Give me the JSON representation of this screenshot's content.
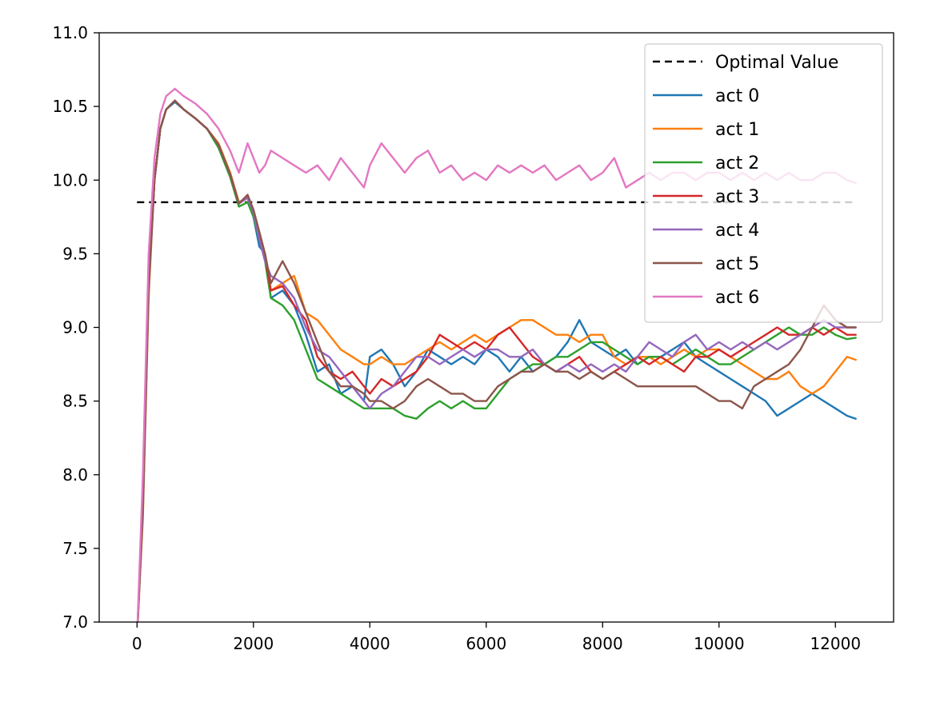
{
  "chart_data": {
    "type": "line",
    "title": "",
    "xlabel": "",
    "ylabel": "",
    "xlim": [
      -650,
      13000
    ],
    "ylim": [
      7.0,
      11.0
    ],
    "x_ticks": [
      0,
      2000,
      4000,
      6000,
      8000,
      10000,
      12000
    ],
    "x_tick_labels": [
      "0",
      "2000",
      "4000",
      "6000",
      "8000",
      "10000",
      "12000"
    ],
    "y_ticks": [
      7.0,
      7.5,
      8.0,
      8.5,
      9.0,
      9.5,
      10.0,
      10.5,
      11.0
    ],
    "y_tick_labels": [
      "7.0",
      "7.5",
      "8.0",
      "8.5",
      "9.0",
      "9.5",
      "10.0",
      "10.5",
      "11.0"
    ],
    "grid": false,
    "legend_position": "top-right",
    "reference_line": {
      "name": "Optimal Value",
      "y": 9.85,
      "x_range": [
        0,
        12350
      ],
      "color": "#000000",
      "style": "dashed"
    },
    "x": [
      0,
      100,
      200,
      300,
      400,
      500,
      650,
      800,
      1000,
      1200,
      1400,
      1600,
      1750,
      1900,
      2000,
      2100,
      2200,
      2300,
      2500,
      2700,
      2900,
      3100,
      3300,
      3500,
      3700,
      3900,
      4000,
      4200,
      4400,
      4600,
      4800,
      5000,
      5200,
      5400,
      5600,
      5800,
      6000,
      6200,
      6400,
      6600,
      6800,
      7000,
      7200,
      7400,
      7600,
      7800,
      8000,
      8200,
      8400,
      8600,
      8800,
      9000,
      9200,
      9400,
      9600,
      9800,
      10000,
      10200,
      10400,
      10600,
      10800,
      11000,
      11200,
      11400,
      11600,
      11800,
      12000,
      12200,
      12350
    ],
    "series": [
      {
        "name": "act 0",
        "color": "#1f77b4",
        "values": [
          6.9,
          7.8,
          9.3,
          10.0,
          10.35,
          10.48,
          10.53,
          10.48,
          10.42,
          10.35,
          10.25,
          10.05,
          9.85,
          9.88,
          9.75,
          9.55,
          9.5,
          9.2,
          9.25,
          9.15,
          8.95,
          8.7,
          8.75,
          8.55,
          8.6,
          8.5,
          8.8,
          8.85,
          8.75,
          8.6,
          8.7,
          8.85,
          8.8,
          8.75,
          8.8,
          8.75,
          8.85,
          8.8,
          8.7,
          8.8,
          8.7,
          8.75,
          8.8,
          8.9,
          9.05,
          8.9,
          8.85,
          8.8,
          8.85,
          8.75,
          8.8,
          8.8,
          8.85,
          8.9,
          8.8,
          8.75,
          8.7,
          8.65,
          8.6,
          8.55,
          8.5,
          8.4,
          8.45,
          8.5,
          8.55,
          8.5,
          8.45,
          8.4,
          8.38
        ]
      },
      {
        "name": "act 1",
        "color": "#ff7f0e",
        "values": [
          6.9,
          7.7,
          9.2,
          10.0,
          10.35,
          10.48,
          10.54,
          10.48,
          10.42,
          10.35,
          10.25,
          10.05,
          9.85,
          9.88,
          9.78,
          9.6,
          9.5,
          9.25,
          9.3,
          9.35,
          9.1,
          9.05,
          8.95,
          8.85,
          8.8,
          8.75,
          8.75,
          8.8,
          8.75,
          8.75,
          8.8,
          8.85,
          8.9,
          8.85,
          8.9,
          8.95,
          8.9,
          8.95,
          9.0,
          9.05,
          9.05,
          9.0,
          8.95,
          8.95,
          8.9,
          8.95,
          8.95,
          8.8,
          8.75,
          8.8,
          8.8,
          8.75,
          8.8,
          8.85,
          8.8,
          8.85,
          8.85,
          8.8,
          8.75,
          8.7,
          8.65,
          8.65,
          8.7,
          8.6,
          8.55,
          8.6,
          8.7,
          8.8,
          8.78
        ]
      },
      {
        "name": "act 2",
        "color": "#2ca02c",
        "values": [
          6.9,
          7.75,
          9.25,
          10.0,
          10.35,
          10.48,
          10.54,
          10.48,
          10.42,
          10.35,
          10.22,
          10.02,
          9.82,
          9.85,
          9.75,
          9.6,
          9.45,
          9.2,
          9.15,
          9.05,
          8.85,
          8.65,
          8.6,
          8.55,
          8.5,
          8.45,
          8.45,
          8.45,
          8.45,
          8.4,
          8.38,
          8.45,
          8.5,
          8.45,
          8.5,
          8.45,
          8.45,
          8.55,
          8.65,
          8.7,
          8.75,
          8.75,
          8.8,
          8.8,
          8.85,
          8.9,
          8.9,
          8.85,
          8.8,
          8.75,
          8.8,
          8.8,
          8.75,
          8.8,
          8.85,
          8.8,
          8.75,
          8.75,
          8.8,
          8.85,
          8.9,
          8.95,
          9.0,
          8.95,
          8.95,
          9.0,
          8.95,
          8.92,
          8.93
        ]
      },
      {
        "name": "act 3",
        "color": "#d62728",
        "values": [
          6.9,
          7.8,
          9.3,
          10.0,
          10.35,
          10.48,
          10.54,
          10.48,
          10.42,
          10.35,
          10.24,
          10.04,
          9.84,
          9.9,
          9.78,
          9.62,
          9.48,
          9.25,
          9.28,
          9.15,
          9.05,
          8.8,
          8.7,
          8.65,
          8.7,
          8.6,
          8.55,
          8.65,
          8.6,
          8.65,
          8.7,
          8.8,
          8.95,
          8.9,
          8.85,
          8.9,
          8.85,
          8.95,
          9.0,
          8.9,
          8.8,
          8.75,
          8.7,
          8.75,
          8.8,
          8.7,
          8.65,
          8.7,
          8.75,
          8.8,
          8.75,
          8.8,
          8.75,
          8.7,
          8.8,
          8.8,
          8.85,
          8.8,
          8.85,
          8.9,
          8.95,
          9.0,
          8.95,
          8.95,
          9.0,
          8.95,
          9.0,
          8.95,
          8.95
        ]
      },
      {
        "name": "act 4",
        "color": "#9467bd",
        "values": [
          6.9,
          7.75,
          9.25,
          10.0,
          10.35,
          10.48,
          10.54,
          10.48,
          10.42,
          10.35,
          10.24,
          10.04,
          9.84,
          9.88,
          9.78,
          9.6,
          9.45,
          9.35,
          9.3,
          9.2,
          9.0,
          8.85,
          8.8,
          8.7,
          8.6,
          8.5,
          8.45,
          8.55,
          8.6,
          8.7,
          8.8,
          8.8,
          8.75,
          8.8,
          8.85,
          8.8,
          8.85,
          8.85,
          8.8,
          8.8,
          8.85,
          8.75,
          8.7,
          8.75,
          8.7,
          8.75,
          8.7,
          8.75,
          8.7,
          8.8,
          8.9,
          8.85,
          8.8,
          8.9,
          8.95,
          8.85,
          8.9,
          8.85,
          8.9,
          8.85,
          8.9,
          8.85,
          8.9,
          8.95,
          9.0,
          9.05,
          9.0,
          9.0,
          9.0
        ]
      },
      {
        "name": "act 5",
        "color": "#8c564b",
        "values": [
          6.9,
          7.8,
          9.3,
          10.0,
          10.35,
          10.48,
          10.54,
          10.48,
          10.42,
          10.35,
          10.24,
          10.04,
          9.84,
          9.9,
          9.8,
          9.65,
          9.5,
          9.3,
          9.45,
          9.3,
          9.1,
          8.9,
          8.7,
          8.6,
          8.6,
          8.55,
          8.5,
          8.5,
          8.45,
          8.5,
          8.6,
          8.65,
          8.6,
          8.55,
          8.55,
          8.5,
          8.5,
          8.6,
          8.65,
          8.7,
          8.7,
          8.75,
          8.7,
          8.7,
          8.65,
          8.7,
          8.65,
          8.7,
          8.65,
          8.6,
          8.6,
          8.6,
          8.6,
          8.6,
          8.6,
          8.55,
          8.5,
          8.5,
          8.45,
          8.6,
          8.65,
          8.7,
          8.75,
          8.85,
          9.0,
          9.15,
          9.05,
          9.0,
          9.0
        ]
      },
      {
        "name": "act 6",
        "color": "#e377c2",
        "values": [
          6.9,
          8.0,
          9.5,
          10.15,
          10.45,
          10.57,
          10.62,
          10.57,
          10.52,
          10.45,
          10.35,
          10.2,
          10.05,
          10.25,
          10.15,
          10.05,
          10.1,
          10.2,
          10.15,
          10.1,
          10.05,
          10.1,
          10.0,
          10.15,
          10.05,
          9.95,
          10.1,
          10.25,
          10.15,
          10.05,
          10.15,
          10.2,
          10.05,
          10.1,
          10.0,
          10.05,
          10.0,
          10.1,
          10.05,
          10.1,
          10.05,
          10.1,
          10.0,
          10.05,
          10.1,
          10.0,
          10.05,
          10.15,
          9.95,
          10.0,
          10.05,
          10.0,
          10.05,
          10.05,
          10.0,
          10.05,
          10.05,
          10.0,
          10.05,
          10.0,
          10.05,
          10.0,
          10.05,
          10.0,
          10.0,
          10.05,
          10.05,
          10.0,
          9.98
        ]
      }
    ]
  }
}
